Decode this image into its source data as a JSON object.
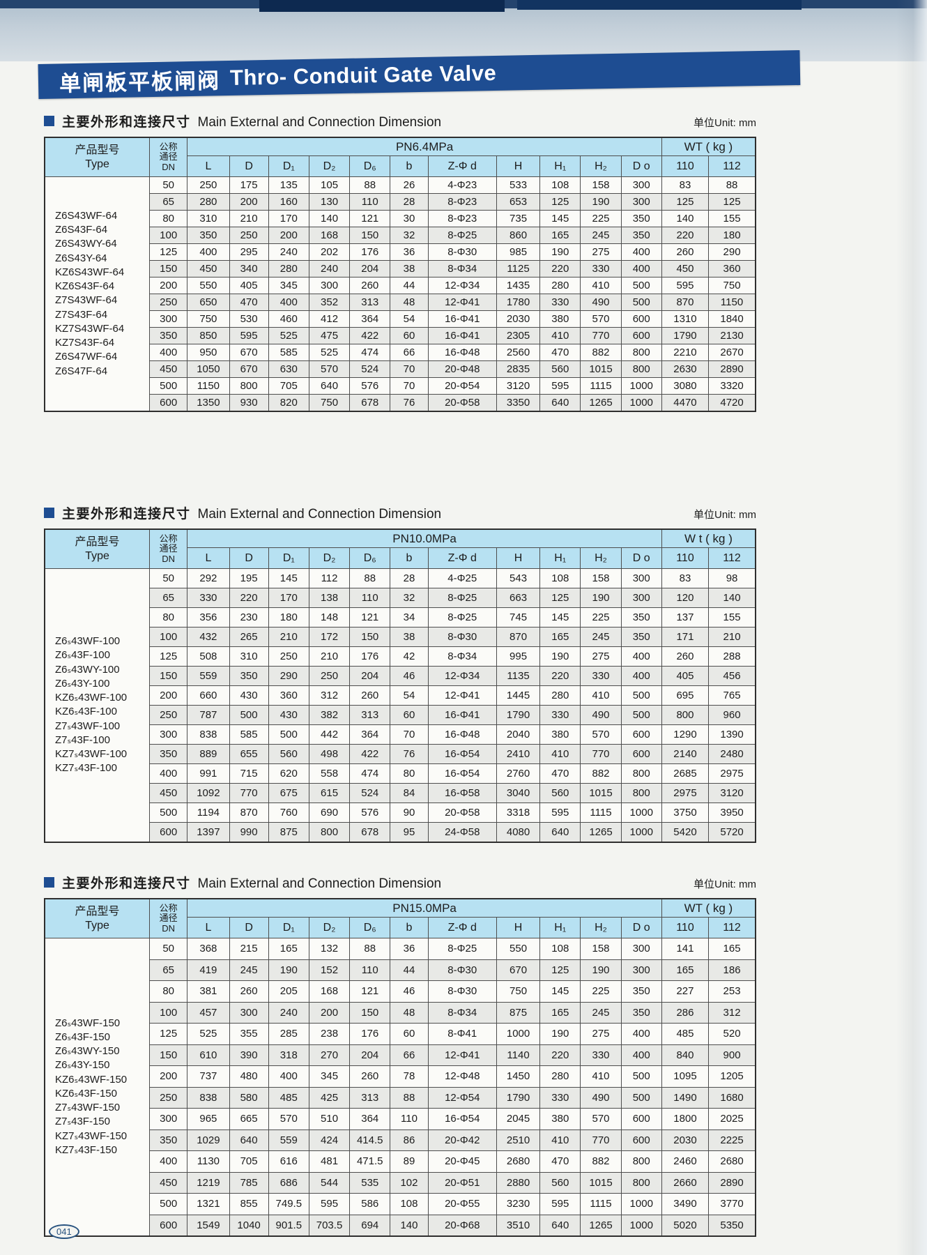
{
  "page": {
    "title_zh": "单闸板平板闸阀",
    "title_en": "Thro- Conduit Gate Valve",
    "page_number": "041"
  },
  "sections": [
    {
      "heading_zh": "主要外形和连接尺寸",
      "heading_en": "Main External and Connection Dimension",
      "unit_label": "单位Unit: mm",
      "type_header_zh": "产品型号",
      "type_header_en": "Type",
      "dn_header": [
        "公称",
        "通径",
        "DN"
      ],
      "pressure_group": "PN6.4MPa",
      "weight_group": "WT ( kg )",
      "dim_headers": [
        "L",
        "D",
        "D₁",
        "D₂",
        "D₆",
        "b",
        "Z-Φ d",
        "H",
        "H₁",
        "H₂",
        "D o"
      ],
      "weight_headers": [
        "110",
        "112"
      ],
      "type_groups": [
        [
          "Z6S43WF-64",
          "Z6S43F-64"
        ],
        [
          "Z6S43WY-64",
          "Z6S43Y-64"
        ],
        [
          "KZ6S43WF-64",
          "KZ6S43F-64"
        ],
        [
          "Z7S43WF-64",
          "Z7S43F-64"
        ],
        [
          "KZ7S43WF-64",
          "KZ7S43F-64"
        ],
        [
          "Z6S47WF-64",
          "Z6S47F-64"
        ]
      ],
      "rows": [
        [
          "50",
          "250",
          "175",
          "135",
          "105",
          "88",
          "26",
          "4-Φ23",
          "533",
          "108",
          "158",
          "300",
          "83",
          "88"
        ],
        [
          "65",
          "280",
          "200",
          "160",
          "130",
          "110",
          "28",
          "8-Φ23",
          "653",
          "125",
          "190",
          "300",
          "125",
          "125"
        ],
        [
          "80",
          "310",
          "210",
          "170",
          "140",
          "121",
          "30",
          "8-Φ23",
          "735",
          "145",
          "225",
          "350",
          "140",
          "155"
        ],
        [
          "100",
          "350",
          "250",
          "200",
          "168",
          "150",
          "32",
          "8-Φ25",
          "860",
          "165",
          "245",
          "350",
          "220",
          "180"
        ],
        [
          "125",
          "400",
          "295",
          "240",
          "202",
          "176",
          "36",
          "8-Φ30",
          "985",
          "190",
          "275",
          "400",
          "260",
          "290"
        ],
        [
          "150",
          "450",
          "340",
          "280",
          "240",
          "204",
          "38",
          "8-Φ34",
          "1125",
          "220",
          "330",
          "400",
          "450",
          "360"
        ],
        [
          "200",
          "550",
          "405",
          "345",
          "300",
          "260",
          "44",
          "12-Φ34",
          "1435",
          "280",
          "410",
          "500",
          "595",
          "750"
        ],
        [
          "250",
          "650",
          "470",
          "400",
          "352",
          "313",
          "48",
          "12-Φ41",
          "1780",
          "330",
          "490",
          "500",
          "870",
          "1150"
        ],
        [
          "300",
          "750",
          "530",
          "460",
          "412",
          "364",
          "54",
          "16-Φ41",
          "2030",
          "380",
          "570",
          "600",
          "1310",
          "1840"
        ],
        [
          "350",
          "850",
          "595",
          "525",
          "475",
          "422",
          "60",
          "16-Φ41",
          "2305",
          "410",
          "770",
          "600",
          "1790",
          "2130"
        ],
        [
          "400",
          "950",
          "670",
          "585",
          "525",
          "474",
          "66",
          "16-Φ48",
          "2560",
          "470",
          "882",
          "800",
          "2210",
          "2670"
        ],
        [
          "450",
          "1050",
          "670",
          "630",
          "570",
          "524",
          "70",
          "20-Φ48",
          "2835",
          "560",
          "1015",
          "800",
          "2630",
          "2890"
        ],
        [
          "500",
          "1150",
          "800",
          "705",
          "640",
          "576",
          "70",
          "20-Φ54",
          "3120",
          "595",
          "1115",
          "1000",
          "3080",
          "3320"
        ],
        [
          "600",
          "1350",
          "930",
          "820",
          "750",
          "678",
          "76",
          "20-Φ58",
          "3350",
          "640",
          "1265",
          "1000",
          "4470",
          "4720"
        ]
      ]
    },
    {
      "heading_zh": "主要外形和连接尺寸",
      "heading_en": "Main External and Connection Dimension",
      "unit_label": "单位Unit: mm",
      "type_header_zh": "产品型号",
      "type_header_en": "Type",
      "dn_header": [
        "公称",
        "通径",
        "DN"
      ],
      "pressure_group": "PN10.0MPa",
      "weight_group": "W t ( kg )",
      "dim_headers": [
        "L",
        "D",
        "D₁",
        "D₂",
        "D₆",
        "b",
        "Z-Φ d",
        "H",
        "H₁",
        "H₂",
        "D o"
      ],
      "weight_headers": [
        "110",
        "112"
      ],
      "type_groups": [
        [
          "Z6ₛ43WF-100",
          "Z6ₛ43F-100"
        ],
        [
          "Z6ₛ43WY-100",
          "Z6ₛ43Y-100"
        ],
        [
          "KZ6ₛ43WF-100",
          "KZ6ₛ43F-100"
        ],
        [
          "Z7ₛ43WF-100",
          "Z7ₛ43F-100"
        ],
        [
          "KZ7ₛ43WF-100",
          "KZ7ₛ43F-100"
        ]
      ],
      "rows": [
        [
          "50",
          "292",
          "195",
          "145",
          "112",
          "88",
          "28",
          "4-Φ25",
          "543",
          "108",
          "158",
          "300",
          "83",
          "98"
        ],
        [
          "65",
          "330",
          "220",
          "170",
          "138",
          "110",
          "32",
          "8-Φ25",
          "663",
          "125",
          "190",
          "300",
          "120",
          "140"
        ],
        [
          "80",
          "356",
          "230",
          "180",
          "148",
          "121",
          "34",
          "8-Φ25",
          "745",
          "145",
          "225",
          "350",
          "137",
          "155"
        ],
        [
          "100",
          "432",
          "265",
          "210",
          "172",
          "150",
          "38",
          "8-Φ30",
          "870",
          "165",
          "245",
          "350",
          "171",
          "210"
        ],
        [
          "125",
          "508",
          "310",
          "250",
          "210",
          "176",
          "42",
          "8-Φ34",
          "995",
          "190",
          "275",
          "400",
          "260",
          "288"
        ],
        [
          "150",
          "559",
          "350",
          "290",
          "250",
          "204",
          "46",
          "12-Φ34",
          "1135",
          "220",
          "330",
          "400",
          "405",
          "456"
        ],
        [
          "200",
          "660",
          "430",
          "360",
          "312",
          "260",
          "54",
          "12-Φ41",
          "1445",
          "280",
          "410",
          "500",
          "695",
          "765"
        ],
        [
          "250",
          "787",
          "500",
          "430",
          "382",
          "313",
          "60",
          "16-Φ41",
          "1790",
          "330",
          "490",
          "500",
          "800",
          "960"
        ],
        [
          "300",
          "838",
          "585",
          "500",
          "442",
          "364",
          "70",
          "16-Φ48",
          "2040",
          "380",
          "570",
          "600",
          "1290",
          "1390"
        ],
        [
          "350",
          "889",
          "655",
          "560",
          "498",
          "422",
          "76",
          "16-Φ54",
          "2410",
          "410",
          "770",
          "600",
          "2140",
          "2480"
        ],
        [
          "400",
          "991",
          "715",
          "620",
          "558",
          "474",
          "80",
          "16-Φ54",
          "2760",
          "470",
          "882",
          "800",
          "2685",
          "2975"
        ],
        [
          "450",
          "1092",
          "770",
          "675",
          "615",
          "524",
          "84",
          "16-Φ58",
          "3040",
          "560",
          "1015",
          "800",
          "2975",
          "3120"
        ],
        [
          "500",
          "1194",
          "870",
          "760",
          "690",
          "576",
          "90",
          "20-Φ58",
          "3318",
          "595",
          "1115",
          "1000",
          "3750",
          "3950"
        ],
        [
          "600",
          "1397",
          "990",
          "875",
          "800",
          "678",
          "95",
          "24-Φ58",
          "4080",
          "640",
          "1265",
          "1000",
          "5420",
          "5720"
        ]
      ]
    },
    {
      "heading_zh": "主要外形和连接尺寸",
      "heading_en": "Main External and Connection Dimension",
      "unit_label": "单位Unit: mm",
      "type_header_zh": "产品型号",
      "type_header_en": "Type",
      "dn_header": [
        "公称",
        "通径",
        "DN"
      ],
      "pressure_group": "PN15.0MPa",
      "weight_group": "WT ( kg )",
      "dim_headers": [
        "L",
        "D",
        "D₁",
        "D₂",
        "D₆",
        "b",
        "Z-Φ d",
        "H",
        "H₁",
        "H₂",
        "D o"
      ],
      "weight_headers": [
        "110",
        "112"
      ],
      "type_groups": [
        [
          "Z6ₛ43WF-150",
          "Z6ₛ43F-150"
        ],
        [
          "Z6ₛ43WY-150",
          "Z6ₛ43Y-150"
        ],
        [
          "KZ6ₛ43WF-150",
          "KZ6ₛ43F-150"
        ],
        [
          "Z7ₛ43WF-150",
          "Z7ₛ43F-150"
        ],
        [
          "KZ7ₛ43WF-150",
          "KZ7ₛ43F-150"
        ]
      ],
      "rows": [
        [
          "50",
          "368",
          "215",
          "165",
          "132",
          "88",
          "36",
          "8-Φ25",
          "550",
          "108",
          "158",
          "300",
          "141",
          "165"
        ],
        [
          "65",
          "419",
          "245",
          "190",
          "152",
          "110",
          "44",
          "8-Φ30",
          "670",
          "125",
          "190",
          "300",
          "165",
          "186"
        ],
        [
          "80",
          "381",
          "260",
          "205",
          "168",
          "121",
          "46",
          "8-Φ30",
          "750",
          "145",
          "225",
          "350",
          "227",
          "253"
        ],
        [
          "100",
          "457",
          "300",
          "240",
          "200",
          "150",
          "48",
          "8-Φ34",
          "875",
          "165",
          "245",
          "350",
          "286",
          "312"
        ],
        [
          "125",
          "525",
          "355",
          "285",
          "238",
          "176",
          "60",
          "8-Φ41",
          "1000",
          "190",
          "275",
          "400",
          "485",
          "520"
        ],
        [
          "150",
          "610",
          "390",
          "318",
          "270",
          "204",
          "66",
          "12-Φ41",
          "1140",
          "220",
          "330",
          "400",
          "840",
          "900"
        ],
        [
          "200",
          "737",
          "480",
          "400",
          "345",
          "260",
          "78",
          "12-Φ48",
          "1450",
          "280",
          "410",
          "500",
          "1095",
          "1205"
        ],
        [
          "250",
          "838",
          "580",
          "485",
          "425",
          "313",
          "88",
          "12-Φ54",
          "1790",
          "330",
          "490",
          "500",
          "1490",
          "1680"
        ],
        [
          "300",
          "965",
          "665",
          "570",
          "510",
          "364",
          "110",
          "16-Φ54",
          "2045",
          "380",
          "570",
          "600",
          "1800",
          "2025"
        ],
        [
          "350",
          "1029",
          "640",
          "559",
          "424",
          "414.5",
          "86",
          "20-Φ42",
          "2510",
          "410",
          "770",
          "600",
          "2030",
          "2225"
        ],
        [
          "400",
          "1130",
          "705",
          "616",
          "481",
          "471.5",
          "89",
          "20-Φ45",
          "2680",
          "470",
          "882",
          "800",
          "2460",
          "2680"
        ],
        [
          "450",
          "1219",
          "785",
          "686",
          "544",
          "535",
          "102",
          "20-Φ51",
          "2880",
          "560",
          "1015",
          "800",
          "2660",
          "2890"
        ],
        [
          "500",
          "1321",
          "855",
          "749.5",
          "595",
          "586",
          "108",
          "20-Φ55",
          "3230",
          "595",
          "1115",
          "1000",
          "3490",
          "3770"
        ],
        [
          "600",
          "1549",
          "1040",
          "901.5",
          "703.5",
          "694",
          "140",
          "20-Φ68",
          "3510",
          "640",
          "1265",
          "1000",
          "5020",
          "5350"
        ]
      ]
    }
  ]
}
